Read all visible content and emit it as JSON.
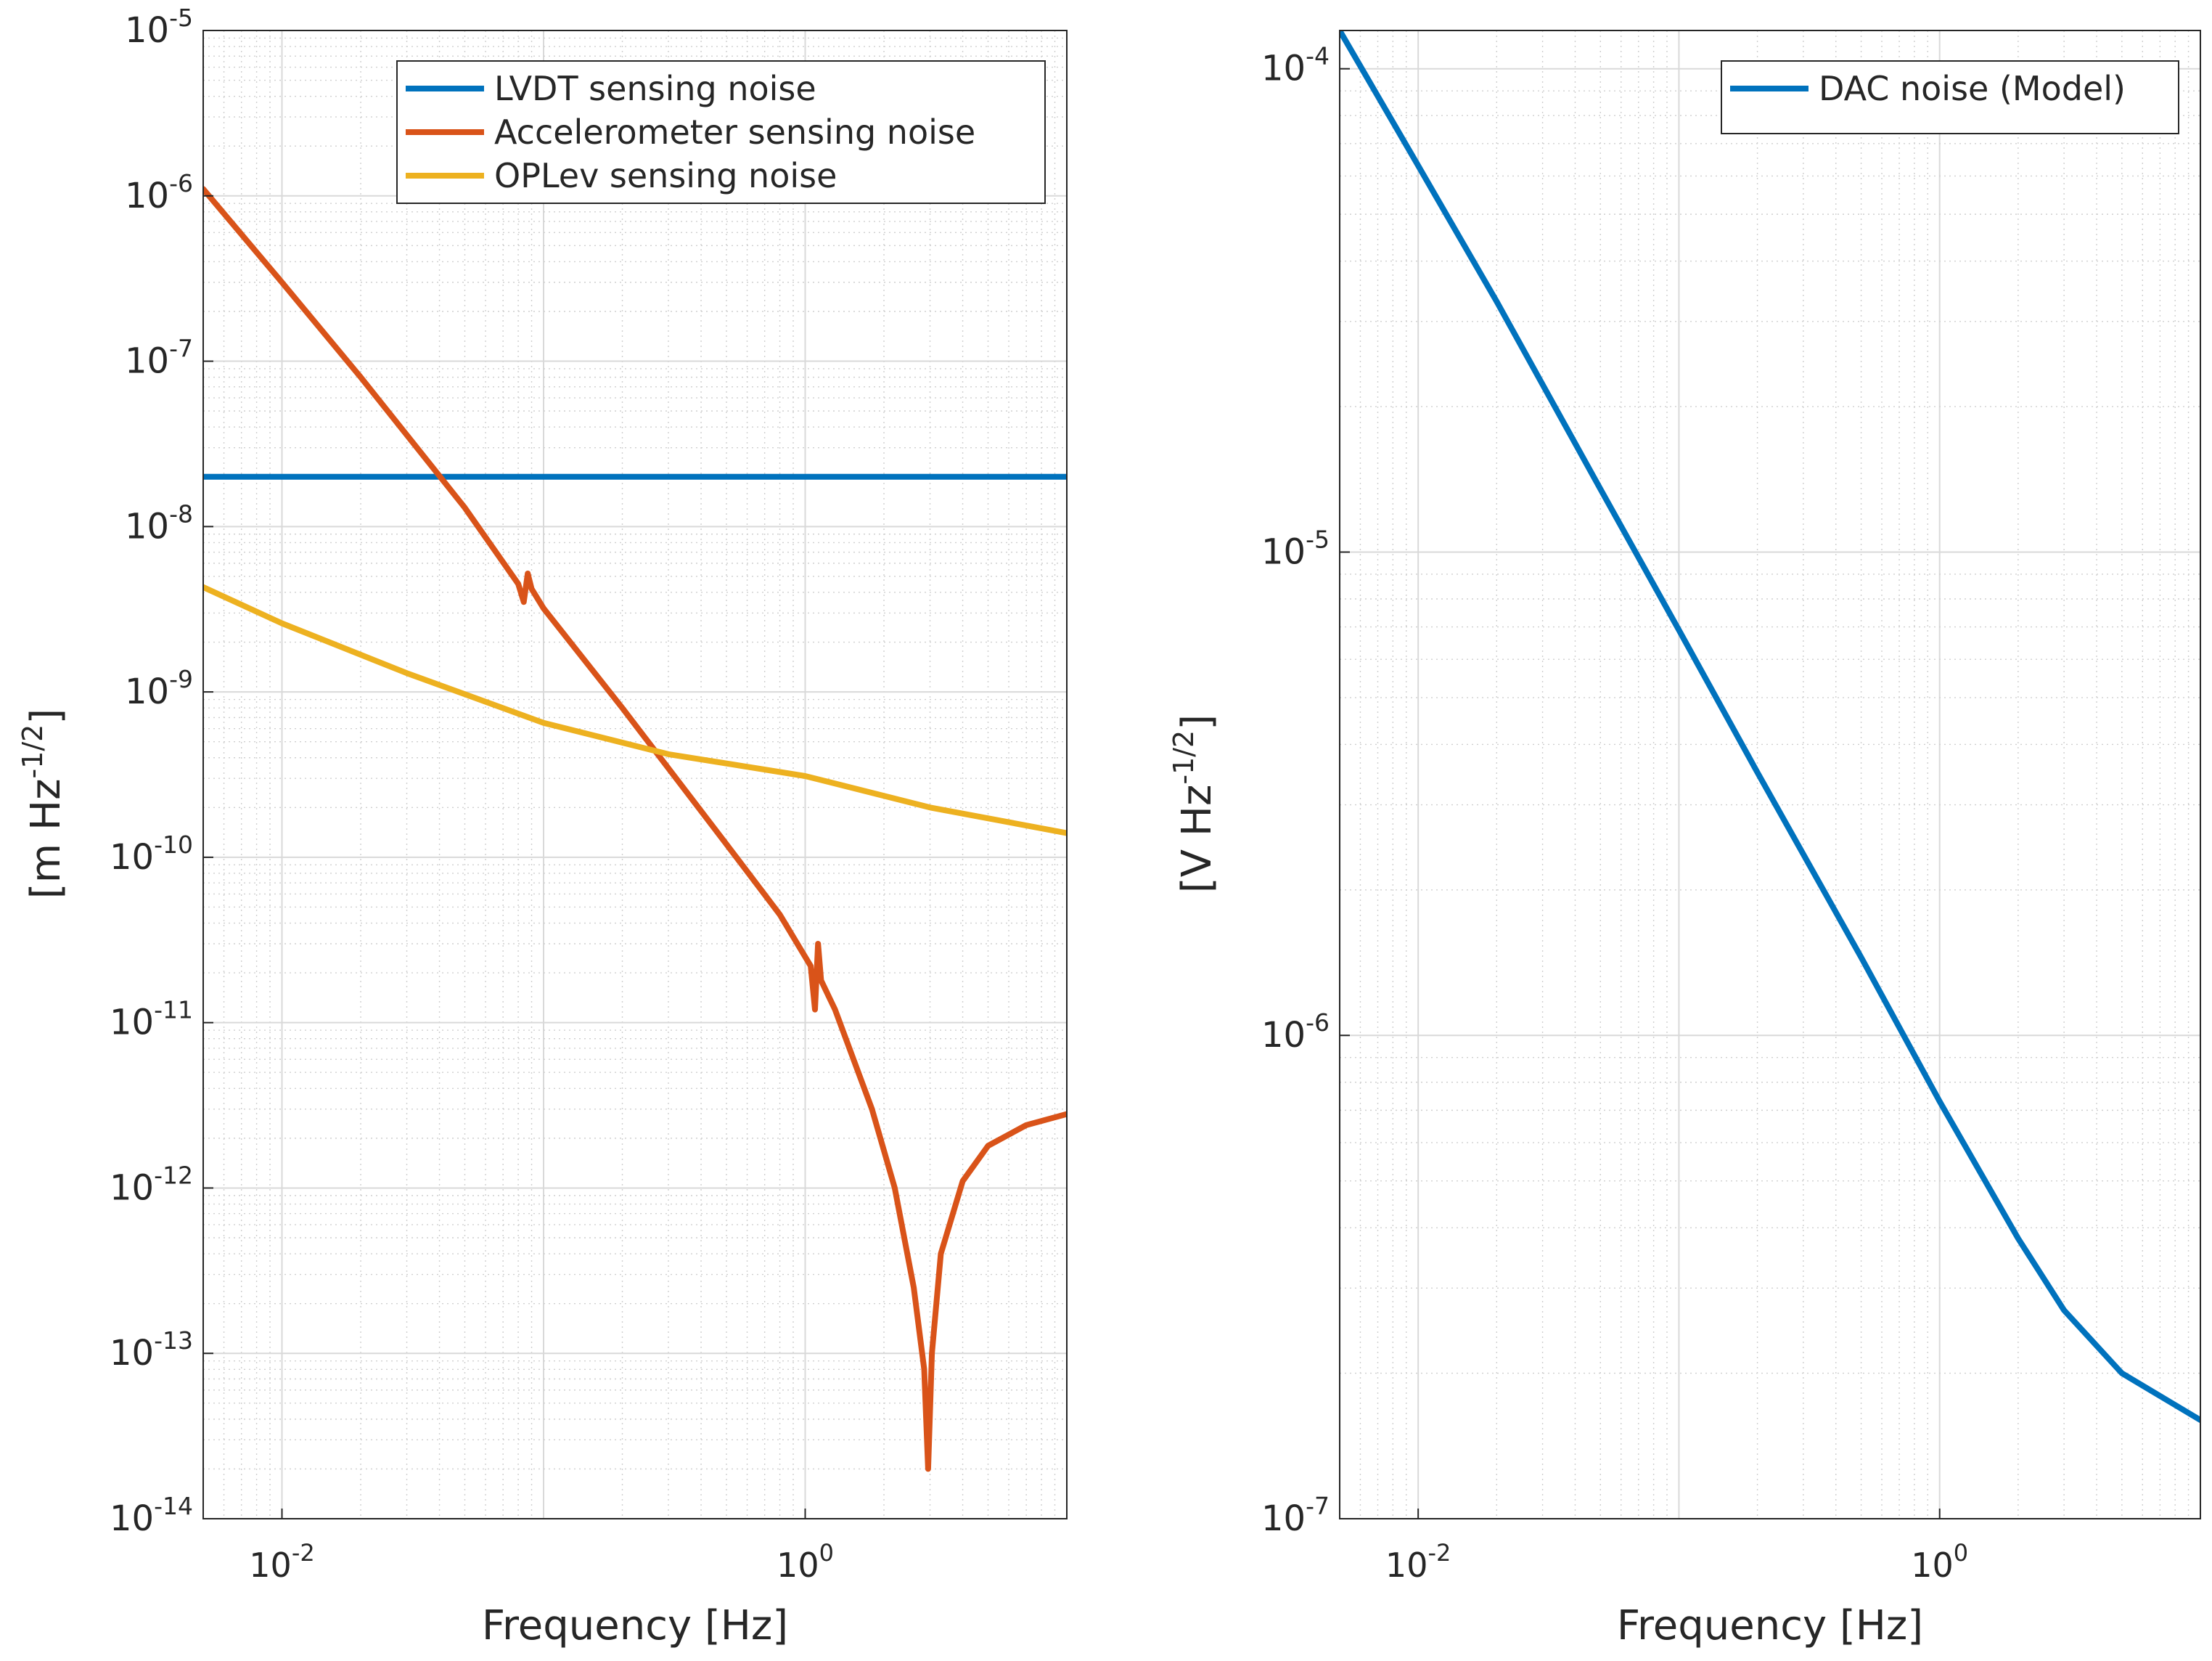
{
  "chart_data": [
    {
      "type": "line",
      "log_x": true,
      "log_y": true,
      "title": "",
      "xlabel": "Frequency [Hz]",
      "ylabel": {
        "base": "[m Hz",
        "sup": "-1/2",
        "end": "]"
      },
      "xlim": [
        0.005,
        10
      ],
      "ylim": [
        1e-14,
        1e-05
      ],
      "grid": true,
      "minor_grid": true,
      "legend_position": "top-right",
      "x_ticks": [
        {
          "value": 0.01,
          "base": "10",
          "exp": "-2"
        },
        {
          "value": 1,
          "base": "10",
          "exp": "0"
        }
      ],
      "y_ticks": [
        {
          "value": 1e-14,
          "base": "10",
          "exp": "-14"
        },
        {
          "value": 1e-13,
          "base": "10",
          "exp": "-13"
        },
        {
          "value": 1e-12,
          "base": "10",
          "exp": "-12"
        },
        {
          "value": 1e-11,
          "base": "10",
          "exp": "-11"
        },
        {
          "value": 1e-10,
          "base": "10",
          "exp": "-10"
        },
        {
          "value": 1e-09,
          "base": "10",
          "exp": "-9"
        },
        {
          "value": 1e-08,
          "base": "10",
          "exp": "-8"
        },
        {
          "value": 1e-07,
          "base": "10",
          "exp": "-7"
        },
        {
          "value": 1e-06,
          "base": "10",
          "exp": "-6"
        },
        {
          "value": 1e-05,
          "base": "10",
          "exp": "-5"
        }
      ],
      "series": [
        {
          "name": "LVDT sensing noise",
          "color": "#0072bd",
          "points": [
            [
              0.005,
              2e-08
            ],
            [
              10,
              2e-08
            ]
          ]
        },
        {
          "name": "Accelerometer sensing noise",
          "color": "#d95319",
          "points": [
            [
              0.005,
              1.1e-06
            ],
            [
              0.01,
              3e-07
            ],
            [
              0.02,
              8e-08
            ],
            [
              0.05,
              1.3e-08
            ],
            [
              0.08,
              4.5e-09
            ],
            [
              0.084,
              3.5e-09
            ],
            [
              0.087,
              5.2e-09
            ],
            [
              0.09,
              4.2e-09
            ],
            [
              0.1,
              3.2e-09
            ],
            [
              0.2,
              8e-10
            ],
            [
              0.5,
              1.2e-10
            ],
            [
              0.8,
              4.5e-11
            ],
            [
              1.05,
              2.2e-11
            ],
            [
              1.09,
              1.2e-11
            ],
            [
              1.12,
              3e-11
            ],
            [
              1.15,
              1.8e-11
            ],
            [
              1.3,
              1.2e-11
            ],
            [
              1.8,
              3e-12
            ],
            [
              2.2,
              1e-12
            ],
            [
              2.6,
              2.5e-13
            ],
            [
              2.85,
              8e-14
            ],
            [
              2.95,
              2e-14
            ],
            [
              3.05,
              1e-13
            ],
            [
              3.3,
              4e-13
            ],
            [
              4,
              1.1e-12
            ],
            [
              5,
              1.8e-12
            ],
            [
              7,
              2.4e-12
            ],
            [
              10,
              2.8e-12
            ]
          ]
        },
        {
          "name": "OPLev sensing noise",
          "color": "#edb120",
          "points": [
            [
              0.005,
              4.3e-09
            ],
            [
              0.01,
              2.6e-09
            ],
            [
              0.03,
              1.3e-09
            ],
            [
              0.1,
              6.5e-10
            ],
            [
              0.3,
              4.2e-10
            ],
            [
              1,
              3.1e-10
            ],
            [
              3,
              2e-10
            ],
            [
              10,
              1.4e-10
            ]
          ]
        }
      ]
    },
    {
      "type": "line",
      "log_x": true,
      "log_y": true,
      "title": "",
      "xlabel": "Frequency [Hz]",
      "ylabel": {
        "base": "[V Hz",
        "sup": "-1/2",
        "end": "]"
      },
      "xlim": [
        0.005,
        10
      ],
      "ylim": [
        1e-07,
        0.00012
      ],
      "grid": true,
      "minor_grid": true,
      "legend_position": "top-right",
      "x_ticks": [
        {
          "value": 0.01,
          "base": "10",
          "exp": "-2"
        },
        {
          "value": 1,
          "base": "10",
          "exp": "0"
        }
      ],
      "y_ticks": [
        {
          "value": 1e-07,
          "base": "10",
          "exp": "-7"
        },
        {
          "value": 1e-06,
          "base": "10",
          "exp": "-6"
        },
        {
          "value": 1e-05,
          "base": "10",
          "exp": "-5"
        },
        {
          "value": 0.0001,
          "base": "10",
          "exp": "-4"
        }
      ],
      "series": [
        {
          "name": "DAC noise (Model)",
          "color": "#0072bd",
          "points": [
            [
              0.005,
              0.00012
            ],
            [
              0.01,
              6.3e-05
            ],
            [
              0.02,
              3.3e-05
            ],
            [
              0.05,
              1.35e-05
            ],
            [
              0.1,
              6.9e-06
            ],
            [
              0.2,
              3.5e-06
            ],
            [
              0.5,
              1.45e-06
            ],
            [
              1,
              7.3e-07
            ],
            [
              2,
              3.8e-07
            ],
            [
              3,
              2.7e-07
            ],
            [
              5,
              2e-07
            ],
            [
              10,
              1.6e-07
            ]
          ]
        }
      ]
    }
  ]
}
